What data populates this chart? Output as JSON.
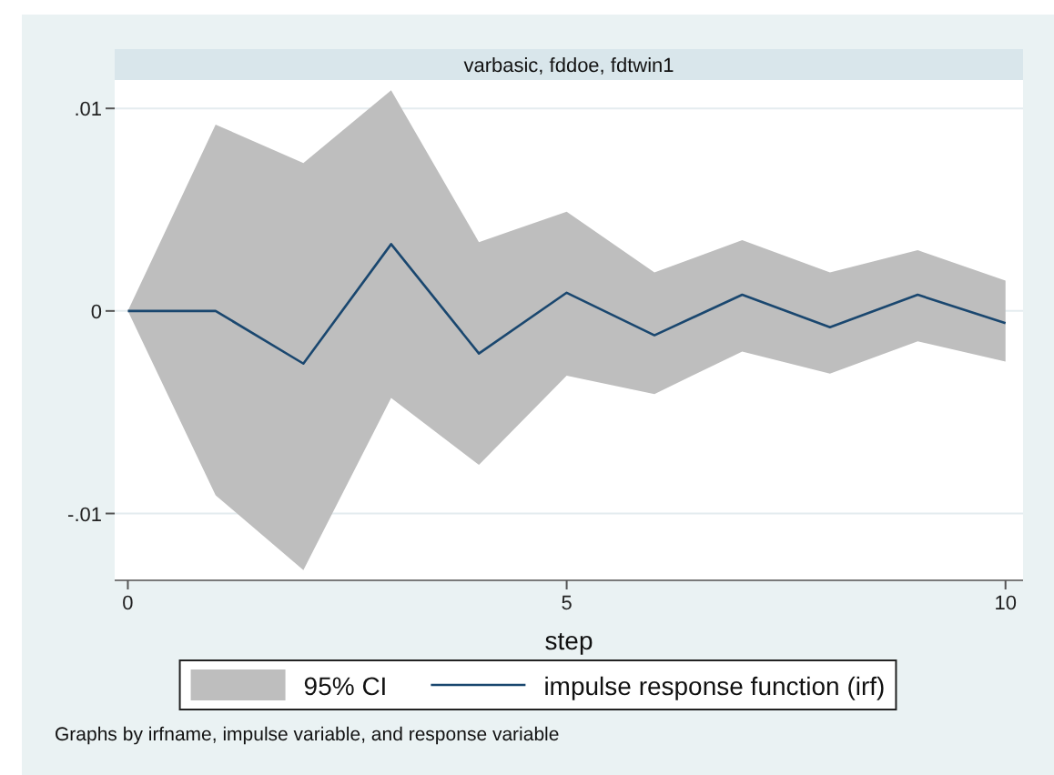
{
  "chart_data": {
    "type": "line",
    "title": "varbasic, fddoe, fdtwin1",
    "xlabel": "step",
    "annotations": [
      "95% CI",
      "Graphs by irfname, impulse variable, and response variable"
    ],
    "x": [
      0,
      1,
      2,
      3,
      4,
      5,
      6,
      7,
      8,
      9,
      10
    ],
    "series": [
      {
        "name": "impulse response function (irf)",
        "type": "line",
        "color": "#1a476f",
        "values": [
          0,
          0,
          -0.0026,
          0.0033,
          -0.0021,
          0.0009,
          -0.0012,
          0.0008,
          -0.0008,
          0.0008,
          -0.0006
        ],
        "lower": [
          0,
          -0.0091,
          -0.0128,
          -0.0043,
          -0.0076,
          -0.0032,
          -0.0041,
          -0.002,
          -0.0031,
          -0.0015,
          -0.0025
        ],
        "upper": [
          0,
          0.0092,
          0.0073,
          0.0109,
          0.0034,
          0.0049,
          0.0019,
          0.0035,
          0.0019,
          0.003,
          0.0015
        ]
      }
    ],
    "xlim": [
      -0.15,
      10.2
    ],
    "ylim": [
      -0.0133,
      0.0114
    ],
    "xticks": [
      0,
      5,
      10
    ],
    "yticks": [
      {
        "value": -0.01,
        "label": "-.01"
      },
      0,
      {
        "value": 0.01,
        "label": ".01"
      }
    ],
    "grid": "y",
    "legend": "bottom"
  }
}
